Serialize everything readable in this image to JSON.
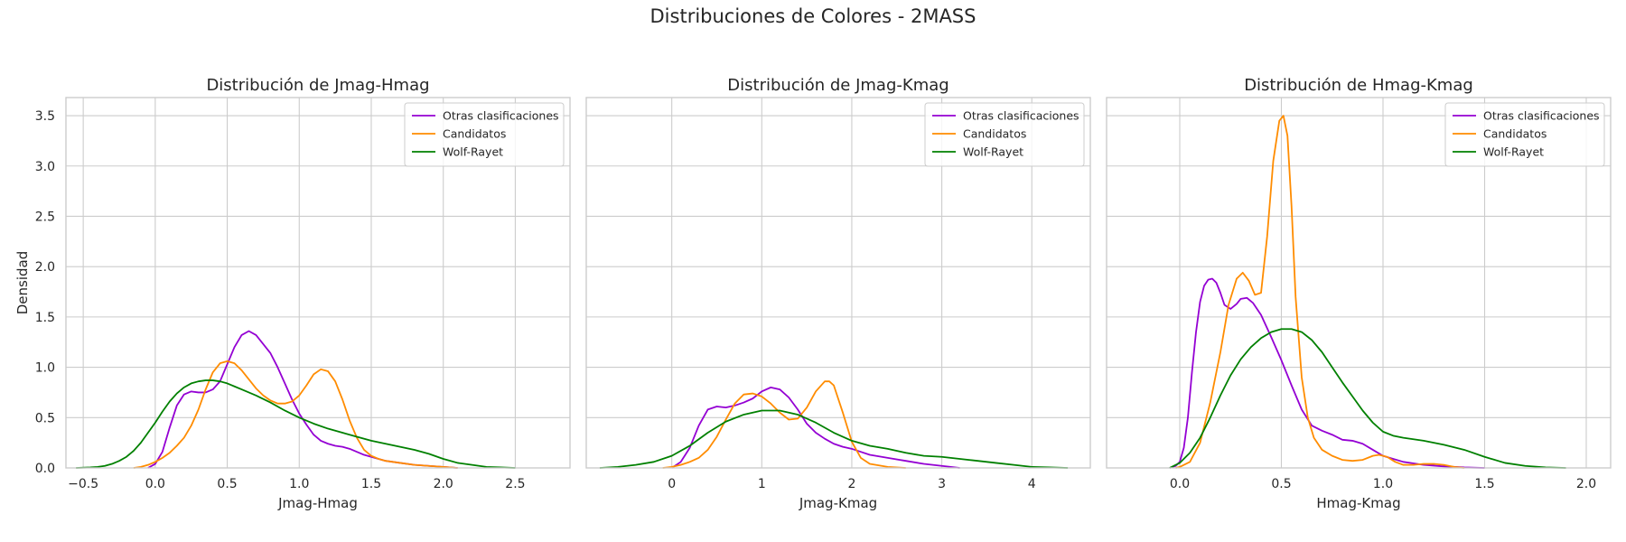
{
  "suptitle": "Distribuciones de Colores - 2MASS",
  "colors": {
    "Otras clasificaciones": "#9400d3",
    "Candidatos": "#ff8c00",
    "Wolf-Rayet": "#008000",
    "grid": "#cccccc",
    "axes_edge": "#cccccc",
    "text": "#262626"
  },
  "chart_data": [
    {
      "type": "line",
      "title": "Distribución de Jmag-Hmag",
      "xlabel": "Jmag-Hmag",
      "ylabel": "Densidad",
      "xlim": [
        -0.62,
        2.88
      ],
      "ylim": [
        0,
        3.68
      ],
      "xticks": [
        -0.5,
        0.0,
        0.5,
        1.0,
        1.5,
        2.0,
        2.5
      ],
      "xtick_labels": [
        "−0.5",
        "0.0",
        "0.5",
        "1.0",
        "1.5",
        "2.0",
        "2.5"
      ],
      "yticks": [
        0.0,
        0.5,
        1.0,
        1.5,
        2.0,
        2.5,
        3.0,
        3.5
      ],
      "ytick_labels": [
        "0.0",
        "0.5",
        "1.0",
        "1.5",
        "2.0",
        "2.5",
        "3.0",
        "3.5"
      ],
      "legend_position": "top-right",
      "series": [
        {
          "name": "Otras clasificaciones",
          "x": [
            -0.05,
            0.0,
            0.05,
            0.1,
            0.15,
            0.2,
            0.25,
            0.3,
            0.35,
            0.4,
            0.45,
            0.5,
            0.55,
            0.6,
            0.65,
            0.7,
            0.75,
            0.8,
            0.85,
            0.9,
            0.95,
            1.0,
            1.05,
            1.1,
            1.15,
            1.2,
            1.25,
            1.3,
            1.35,
            1.4,
            1.45,
            1.5,
            1.55,
            1.6,
            1.7,
            1.8,
            1.9,
            2.0,
            2.1
          ],
          "y": [
            0.0,
            0.04,
            0.16,
            0.4,
            0.62,
            0.73,
            0.76,
            0.75,
            0.75,
            0.78,
            0.86,
            1.03,
            1.2,
            1.32,
            1.36,
            1.32,
            1.23,
            1.14,
            1.0,
            0.84,
            0.68,
            0.54,
            0.43,
            0.33,
            0.27,
            0.24,
            0.22,
            0.21,
            0.19,
            0.16,
            0.13,
            0.11,
            0.09,
            0.07,
            0.05,
            0.03,
            0.02,
            0.01,
            0.0
          ]
        },
        {
          "name": "Candidatos",
          "x": [
            -0.15,
            -0.1,
            -0.05,
            0.0,
            0.05,
            0.1,
            0.15,
            0.2,
            0.25,
            0.3,
            0.35,
            0.4,
            0.45,
            0.5,
            0.55,
            0.6,
            0.65,
            0.7,
            0.75,
            0.8,
            0.85,
            0.9,
            0.95,
            1.0,
            1.05,
            1.1,
            1.15,
            1.2,
            1.25,
            1.3,
            1.35,
            1.4,
            1.45,
            1.5,
            1.55,
            1.6,
            1.7,
            1.8,
            1.9,
            2.0,
            2.1
          ],
          "y": [
            0.0,
            0.01,
            0.03,
            0.06,
            0.1,
            0.15,
            0.22,
            0.3,
            0.42,
            0.58,
            0.78,
            0.95,
            1.04,
            1.06,
            1.04,
            0.97,
            0.88,
            0.79,
            0.72,
            0.67,
            0.64,
            0.64,
            0.66,
            0.72,
            0.82,
            0.93,
            0.98,
            0.96,
            0.86,
            0.68,
            0.47,
            0.3,
            0.18,
            0.12,
            0.09,
            0.07,
            0.05,
            0.03,
            0.02,
            0.01,
            0.0
          ]
        },
        {
          "name": "Wolf-Rayet",
          "x": [
            -0.55,
            -0.45,
            -0.4,
            -0.35,
            -0.3,
            -0.25,
            -0.2,
            -0.15,
            -0.1,
            -0.05,
            0.0,
            0.05,
            0.1,
            0.15,
            0.2,
            0.25,
            0.3,
            0.35,
            0.4,
            0.45,
            0.5,
            0.55,
            0.6,
            0.7,
            0.8,
            0.9,
            1.0,
            1.1,
            1.2,
            1.3,
            1.4,
            1.5,
            1.6,
            1.7,
            1.8,
            1.9,
            2.0,
            2.1,
            2.2,
            2.3,
            2.4,
            2.5
          ],
          "y": [
            0.0,
            0.005,
            0.01,
            0.02,
            0.04,
            0.07,
            0.11,
            0.17,
            0.25,
            0.35,
            0.45,
            0.56,
            0.66,
            0.74,
            0.8,
            0.84,
            0.86,
            0.87,
            0.87,
            0.86,
            0.84,
            0.81,
            0.78,
            0.72,
            0.65,
            0.57,
            0.5,
            0.44,
            0.39,
            0.35,
            0.31,
            0.27,
            0.24,
            0.21,
            0.18,
            0.14,
            0.09,
            0.05,
            0.03,
            0.01,
            0.005,
            0.0
          ]
        }
      ]
    },
    {
      "type": "line",
      "title": "Distribución de Jmag-Kmag",
      "xlabel": "Jmag-Kmag",
      "xlim": [
        -0.95,
        4.65
      ],
      "ylim": [
        0,
        3.68
      ],
      "xticks": [
        0,
        1,
        2,
        3,
        4
      ],
      "xtick_labels": [
        "0",
        "1",
        "2",
        "3",
        "4"
      ],
      "legend_position": "top-right",
      "series": [
        {
          "name": "Otras clasificaciones",
          "x": [
            0.0,
            0.1,
            0.2,
            0.3,
            0.4,
            0.5,
            0.6,
            0.7,
            0.8,
            0.9,
            1.0,
            1.1,
            1.2,
            1.3,
            1.4,
            1.5,
            1.6,
            1.7,
            1.8,
            1.9,
            2.0,
            2.1,
            2.2,
            2.4,
            2.6,
            2.8,
            3.0,
            3.2
          ],
          "y": [
            0.0,
            0.06,
            0.2,
            0.42,
            0.58,
            0.61,
            0.6,
            0.62,
            0.65,
            0.69,
            0.76,
            0.8,
            0.78,
            0.7,
            0.58,
            0.44,
            0.35,
            0.29,
            0.24,
            0.21,
            0.19,
            0.16,
            0.13,
            0.1,
            0.07,
            0.04,
            0.02,
            0.0
          ]
        },
        {
          "name": "Candidatos",
          "x": [
            -0.1,
            0.0,
            0.1,
            0.2,
            0.3,
            0.4,
            0.5,
            0.6,
            0.7,
            0.8,
            0.9,
            1.0,
            1.1,
            1.2,
            1.3,
            1.4,
            1.5,
            1.6,
            1.7,
            1.75,
            1.8,
            1.9,
            2.0,
            2.1,
            2.2,
            2.4,
            2.6
          ],
          "y": [
            0.0,
            0.01,
            0.03,
            0.06,
            0.1,
            0.18,
            0.31,
            0.48,
            0.64,
            0.73,
            0.74,
            0.71,
            0.64,
            0.55,
            0.48,
            0.49,
            0.6,
            0.76,
            0.86,
            0.86,
            0.82,
            0.55,
            0.26,
            0.1,
            0.04,
            0.01,
            0.0
          ]
        },
        {
          "name": "Wolf-Rayet",
          "x": [
            -0.8,
            -0.6,
            -0.4,
            -0.2,
            0.0,
            0.2,
            0.4,
            0.6,
            0.8,
            1.0,
            1.2,
            1.4,
            1.6,
            1.8,
            2.0,
            2.2,
            2.4,
            2.6,
            2.8,
            3.0,
            3.2,
            3.4,
            3.6,
            3.8,
            4.0,
            4.2,
            4.4
          ],
          "y": [
            0.0,
            0.01,
            0.03,
            0.06,
            0.12,
            0.22,
            0.35,
            0.46,
            0.53,
            0.57,
            0.57,
            0.53,
            0.45,
            0.35,
            0.27,
            0.22,
            0.19,
            0.15,
            0.12,
            0.11,
            0.09,
            0.07,
            0.05,
            0.03,
            0.01,
            0.005,
            0.0
          ]
        }
      ]
    },
    {
      "type": "line",
      "title": "Distribución de Hmag-Kmag",
      "xlabel": "Hmag-Kmag",
      "xlim": [
        -0.36,
        2.12
      ],
      "ylim": [
        0,
        3.68
      ],
      "xticks": [
        0.0,
        0.5,
        1.0,
        1.5,
        2.0
      ],
      "xtick_labels": [
        "0.0",
        "0.5",
        "1.0",
        "1.5",
        "2.0"
      ],
      "legend_position": "top-right",
      "series": [
        {
          "name": "Otras clasificaciones",
          "x": [
            -0.05,
            -0.02,
            0.0,
            0.02,
            0.04,
            0.06,
            0.08,
            0.1,
            0.12,
            0.14,
            0.16,
            0.18,
            0.2,
            0.22,
            0.25,
            0.28,
            0.3,
            0.33,
            0.36,
            0.4,
            0.45,
            0.5,
            0.55,
            0.6,
            0.65,
            0.7,
            0.75,
            0.8,
            0.85,
            0.9,
            0.95,
            1.0,
            1.05,
            1.1,
            1.2,
            1.3,
            1.4,
            1.5
          ],
          "y": [
            0.0,
            0.02,
            0.06,
            0.2,
            0.5,
            0.95,
            1.35,
            1.65,
            1.81,
            1.87,
            1.88,
            1.84,
            1.74,
            1.62,
            1.58,
            1.63,
            1.68,
            1.69,
            1.64,
            1.52,
            1.3,
            1.07,
            0.82,
            0.58,
            0.42,
            0.37,
            0.33,
            0.28,
            0.27,
            0.24,
            0.18,
            0.12,
            0.09,
            0.06,
            0.03,
            0.015,
            0.005,
            0.0
          ]
        },
        {
          "name": "Candidatos",
          "x": [
            -0.02,
            0.0,
            0.05,
            0.1,
            0.15,
            0.2,
            0.24,
            0.28,
            0.31,
            0.34,
            0.37,
            0.4,
            0.43,
            0.46,
            0.49,
            0.51,
            0.53,
            0.55,
            0.57,
            0.6,
            0.63,
            0.66,
            0.7,
            0.75,
            0.8,
            0.85,
            0.9,
            0.95,
            0.98,
            1.02,
            1.06,
            1.1,
            1.15,
            1.2,
            1.25,
            1.3,
            1.35,
            1.4
          ],
          "y": [
            0.0,
            0.01,
            0.06,
            0.25,
            0.65,
            1.15,
            1.62,
            1.88,
            1.94,
            1.86,
            1.72,
            1.74,
            2.3,
            3.05,
            3.45,
            3.5,
            3.3,
            2.6,
            1.7,
            0.9,
            0.5,
            0.3,
            0.18,
            0.12,
            0.08,
            0.07,
            0.08,
            0.12,
            0.13,
            0.11,
            0.06,
            0.03,
            0.03,
            0.04,
            0.04,
            0.03,
            0.01,
            0.0
          ]
        },
        {
          "name": "Wolf-Rayet",
          "x": [
            -0.05,
            0.0,
            0.05,
            0.1,
            0.15,
            0.2,
            0.25,
            0.3,
            0.35,
            0.4,
            0.45,
            0.5,
            0.55,
            0.6,
            0.65,
            0.7,
            0.75,
            0.8,
            0.85,
            0.9,
            0.95,
            1.0,
            1.05,
            1.1,
            1.2,
            1.3,
            1.4,
            1.5,
            1.6,
            1.7,
            1.8,
            1.9
          ],
          "y": [
            0.0,
            0.05,
            0.15,
            0.3,
            0.5,
            0.72,
            0.92,
            1.08,
            1.2,
            1.29,
            1.35,
            1.38,
            1.38,
            1.35,
            1.27,
            1.15,
            1.0,
            0.85,
            0.71,
            0.57,
            0.45,
            0.36,
            0.32,
            0.3,
            0.27,
            0.23,
            0.18,
            0.11,
            0.05,
            0.02,
            0.005,
            0.0
          ]
        }
      ]
    }
  ]
}
